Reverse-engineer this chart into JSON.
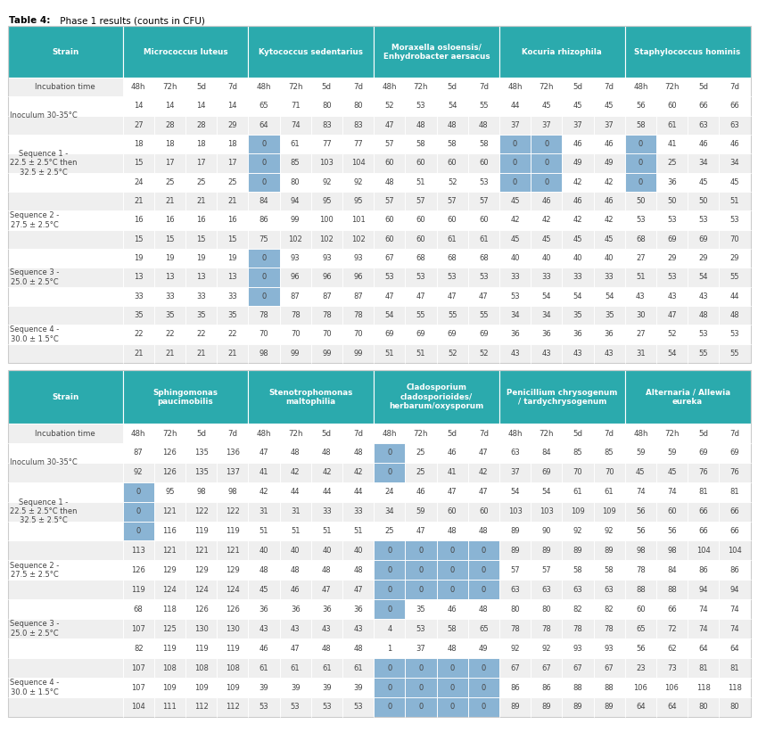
{
  "title_bold": "Table 4:",
  "title_normal": " Phase 1 results (counts in CFU)",
  "teal_color": "#2BAAAD",
  "light_blue_cell": "#8AB4D4",
  "white": "#FFFFFF",
  "light_gray": "#EFEFEF",
  "dark_text": "#444444",
  "white_text": "#FFFFFF",
  "border_color": "#CCCCCC",
  "table1": {
    "col_groups": [
      "Strain",
      "Micrococcus luteus",
      "Kytococcus sedentarius",
      "Moraxella osloensis/\nEnhydrobacter aersacus",
      "Kocuria rhizophila",
      "Staphylococcus hominis"
    ],
    "col_group_spans": [
      1,
      4,
      4,
      4,
      4,
      4
    ],
    "rows": [
      {
        "label": "Incubation time",
        "values": [
          "",
          "48h",
          "72h",
          "5d",
          "7d",
          "48h",
          "72h",
          "5d",
          "7d",
          "48h",
          "72h",
          "5d",
          "7d",
          "48h",
          "72h",
          "5d",
          "7d",
          "48h",
          "72h",
          "5d",
          "7d"
        ],
        "type": "subheader"
      },
      {
        "label": "Inoculum 30-35°C",
        "values": [
          "14",
          "14",
          "14",
          "14",
          "65",
          "71",
          "80",
          "80",
          "52",
          "53",
          "54",
          "55",
          "44",
          "45",
          "45",
          "45",
          "56",
          "60",
          "66",
          "66"
        ],
        "type": "data",
        "row_style": "white",
        "blue_cells": []
      },
      {
        "label": "",
        "values": [
          "27",
          "28",
          "28",
          "29",
          "64",
          "74",
          "83",
          "83",
          "47",
          "48",
          "48",
          "48",
          "37",
          "37",
          "37",
          "37",
          "58",
          "61",
          "63",
          "63"
        ],
        "type": "data",
        "row_style": "gray",
        "blue_cells": []
      },
      {
        "label": "Sequence 1 -\n22.5 ± 2.5°C then\n32.5 ± 2.5°C",
        "values": [
          "18",
          "18",
          "18",
          "18",
          "0",
          "61",
          "77",
          "77",
          "57",
          "58",
          "58",
          "58",
          "0",
          "0",
          "46",
          "46",
          "0",
          "41",
          "46",
          "46"
        ],
        "type": "data",
        "row_style": "white",
        "blue_cells": [
          4,
          12,
          13,
          16
        ]
      },
      {
        "label": "",
        "values": [
          "15",
          "17",
          "17",
          "17",
          "0",
          "85",
          "103",
          "104",
          "60",
          "60",
          "60",
          "60",
          "0",
          "0",
          "49",
          "49",
          "0",
          "25",
          "34",
          "34"
        ],
        "type": "data",
        "row_style": "gray",
        "blue_cells": [
          4,
          12,
          13,
          16
        ]
      },
      {
        "label": "",
        "values": [
          "24",
          "25",
          "25",
          "25",
          "0",
          "80",
          "92",
          "92",
          "48",
          "51",
          "52",
          "53",
          "0",
          "0",
          "42",
          "42",
          "0",
          "36",
          "45",
          "45"
        ],
        "type": "data",
        "row_style": "white",
        "blue_cells": [
          4,
          12,
          13,
          16
        ]
      },
      {
        "label": "Sequence 2 -\n27.5 ± 2.5°C",
        "values": [
          "21",
          "21",
          "21",
          "21",
          "84",
          "94",
          "95",
          "95",
          "57",
          "57",
          "57",
          "57",
          "45",
          "46",
          "46",
          "46",
          "50",
          "50",
          "50",
          "51"
        ],
        "type": "data",
        "row_style": "gray",
        "blue_cells": []
      },
      {
        "label": "",
        "values": [
          "16",
          "16",
          "16",
          "16",
          "86",
          "99",
          "100",
          "101",
          "60",
          "60",
          "60",
          "60",
          "42",
          "42",
          "42",
          "42",
          "53",
          "53",
          "53",
          "53"
        ],
        "type": "data",
        "row_style": "white",
        "blue_cells": []
      },
      {
        "label": "",
        "values": [
          "15",
          "15",
          "15",
          "15",
          "75",
          "102",
          "102",
          "102",
          "60",
          "60",
          "61",
          "61",
          "45",
          "45",
          "45",
          "45",
          "68",
          "69",
          "69",
          "70"
        ],
        "type": "data",
        "row_style": "gray",
        "blue_cells": []
      },
      {
        "label": "Sequence 3 -\n25.0 ± 2.5°C",
        "values": [
          "19",
          "19",
          "19",
          "19",
          "0",
          "93",
          "93",
          "93",
          "67",
          "68",
          "68",
          "68",
          "40",
          "40",
          "40",
          "40",
          "27",
          "29",
          "29",
          "29"
        ],
        "type": "data",
        "row_style": "white",
        "blue_cells": [
          4
        ]
      },
      {
        "label": "",
        "values": [
          "13",
          "13",
          "13",
          "13",
          "0",
          "96",
          "96",
          "96",
          "53",
          "53",
          "53",
          "53",
          "33",
          "33",
          "33",
          "33",
          "51",
          "53",
          "54",
          "55"
        ],
        "type": "data",
        "row_style": "gray",
        "blue_cells": [
          4
        ]
      },
      {
        "label": "",
        "values": [
          "33",
          "33",
          "33",
          "33",
          "0",
          "87",
          "87",
          "87",
          "47",
          "47",
          "47",
          "47",
          "53",
          "54",
          "54",
          "54",
          "43",
          "43",
          "43",
          "44"
        ],
        "type": "data",
        "row_style": "white",
        "blue_cells": [
          4
        ]
      },
      {
        "label": "Sequence 4 -\n30.0 ± 1.5°C",
        "values": [
          "35",
          "35",
          "35",
          "35",
          "78",
          "78",
          "78",
          "78",
          "54",
          "55",
          "55",
          "55",
          "34",
          "34",
          "35",
          "35",
          "30",
          "47",
          "48",
          "48"
        ],
        "type": "data",
        "row_style": "gray",
        "blue_cells": []
      },
      {
        "label": "",
        "values": [
          "22",
          "22",
          "22",
          "22",
          "70",
          "70",
          "70",
          "70",
          "69",
          "69",
          "69",
          "69",
          "36",
          "36",
          "36",
          "36",
          "27",
          "52",
          "53",
          "53"
        ],
        "type": "data",
        "row_style": "white",
        "blue_cells": []
      },
      {
        "label": "",
        "values": [
          "21",
          "21",
          "21",
          "21",
          "98",
          "99",
          "99",
          "99",
          "51",
          "51",
          "52",
          "52",
          "43",
          "43",
          "43",
          "43",
          "31",
          "54",
          "55",
          "55"
        ],
        "type": "data",
        "row_style": "gray",
        "blue_cells": []
      }
    ]
  },
  "table2": {
    "col_groups": [
      "Strain",
      "Sphingomonas\npaucimobilis",
      "Stenotrophomonas\nmaltophilia",
      "Cladosporium\ncladosporioides/\nherbarum/oxysporum",
      "Penicillium chrysogenum\n/ tardychrysogenum",
      "Alternaria / Allewia\neureka"
    ],
    "col_group_spans": [
      1,
      4,
      4,
      4,
      4,
      4
    ],
    "rows": [
      {
        "label": "Incubation time",
        "values": [
          "",
          "48h",
          "72h",
          "5d",
          "7d",
          "48h",
          "72h",
          "5d",
          "7d",
          "48h",
          "72h",
          "5d",
          "7d",
          "48h",
          "72h",
          "5d",
          "7d",
          "48h",
          "72h",
          "5d",
          "7d"
        ],
        "type": "subheader"
      },
      {
        "label": "Inoculum 30-35°C",
        "values": [
          "87",
          "126",
          "135",
          "136",
          "47",
          "48",
          "48",
          "48",
          "0",
          "25",
          "46",
          "47",
          "63",
          "84",
          "85",
          "85",
          "59",
          "59",
          "69",
          "69"
        ],
        "type": "data",
        "row_style": "white",
        "blue_cells": [
          8
        ]
      },
      {
        "label": "",
        "values": [
          "92",
          "126",
          "135",
          "137",
          "41",
          "42",
          "42",
          "42",
          "0",
          "25",
          "41",
          "42",
          "37",
          "69",
          "70",
          "70",
          "45",
          "45",
          "76",
          "76"
        ],
        "type": "data",
        "row_style": "gray",
        "blue_cells": [
          8
        ]
      },
      {
        "label": "Sequence 1 -\n22.5 ± 2.5°C then\n32.5 ± 2.5°C",
        "values": [
          "0",
          "95",
          "98",
          "98",
          "42",
          "44",
          "44",
          "44",
          "24",
          "46",
          "47",
          "47",
          "54",
          "54",
          "61",
          "61",
          "74",
          "74",
          "81",
          "81"
        ],
        "type": "data",
        "row_style": "white",
        "blue_cells": [
          0
        ]
      },
      {
        "label": "",
        "values": [
          "0",
          "121",
          "122",
          "122",
          "31",
          "31",
          "33",
          "33",
          "34",
          "59",
          "60",
          "60",
          "103",
          "103",
          "109",
          "109",
          "56",
          "60",
          "66",
          "66"
        ],
        "type": "data",
        "row_style": "gray",
        "blue_cells": [
          0
        ]
      },
      {
        "label": "",
        "values": [
          "0",
          "116",
          "119",
          "119",
          "51",
          "51",
          "51",
          "51",
          "25",
          "47",
          "48",
          "48",
          "89",
          "90",
          "92",
          "92",
          "56",
          "56",
          "66",
          "66"
        ],
        "type": "data",
        "row_style": "white",
        "blue_cells": [
          0
        ]
      },
      {
        "label": "Sequence 2 -\n27.5 ± 2.5°C",
        "values": [
          "113",
          "121",
          "121",
          "121",
          "40",
          "40",
          "40",
          "40",
          "0",
          "0",
          "0",
          "0",
          "89",
          "89",
          "89",
          "89",
          "98",
          "98",
          "104",
          "104"
        ],
        "type": "data",
        "row_style": "gray",
        "blue_cells": [
          8,
          9,
          10,
          11
        ]
      },
      {
        "label": "",
        "values": [
          "126",
          "129",
          "129",
          "129",
          "48",
          "48",
          "48",
          "48",
          "0",
          "0",
          "0",
          "0",
          "57",
          "57",
          "58",
          "58",
          "78",
          "84",
          "86",
          "86"
        ],
        "type": "data",
        "row_style": "white",
        "blue_cells": [
          8,
          9,
          10,
          11
        ]
      },
      {
        "label": "",
        "values": [
          "119",
          "124",
          "124",
          "124",
          "45",
          "46",
          "47",
          "47",
          "0",
          "0",
          "0",
          "0",
          "63",
          "63",
          "63",
          "63",
          "88",
          "88",
          "94",
          "94"
        ],
        "type": "data",
        "row_style": "gray",
        "blue_cells": [
          8,
          9,
          10,
          11
        ]
      },
      {
        "label": "Sequence 3 -\n25.0 ± 2.5°C",
        "values": [
          "68",
          "118",
          "126",
          "126",
          "36",
          "36",
          "36",
          "36",
          "0",
          "35",
          "46",
          "48",
          "80",
          "80",
          "82",
          "82",
          "60",
          "66",
          "74",
          "74"
        ],
        "type": "data",
        "row_style": "white",
        "blue_cells": [
          8
        ]
      },
      {
        "label": "",
        "values": [
          "107",
          "125",
          "130",
          "130",
          "43",
          "43",
          "43",
          "43",
          "4",
          "53",
          "58",
          "65",
          "78",
          "78",
          "78",
          "78",
          "65",
          "72",
          "74",
          "74"
        ],
        "type": "data",
        "row_style": "gray",
        "blue_cells": []
      },
      {
        "label": "",
        "values": [
          "82",
          "119",
          "119",
          "119",
          "46",
          "47",
          "48",
          "48",
          "1",
          "37",
          "48",
          "49",
          "92",
          "92",
          "93",
          "93",
          "56",
          "62",
          "64",
          "64"
        ],
        "type": "data",
        "row_style": "white",
        "blue_cells": []
      },
      {
        "label": "Sequence 4 -\n30.0 ± 1.5°C",
        "values": [
          "107",
          "108",
          "108",
          "108",
          "61",
          "61",
          "61",
          "61",
          "0",
          "0",
          "0",
          "0",
          "67",
          "67",
          "67",
          "67",
          "23",
          "73",
          "81",
          "81"
        ],
        "type": "data",
        "row_style": "gray",
        "blue_cells": [
          8,
          9,
          10,
          11
        ]
      },
      {
        "label": "",
        "values": [
          "107",
          "109",
          "109",
          "109",
          "39",
          "39",
          "39",
          "39",
          "0",
          "0",
          "0",
          "0",
          "86",
          "86",
          "88",
          "88",
          "106",
          "106",
          "118",
          "118"
        ],
        "type": "data",
        "row_style": "white",
        "blue_cells": [
          8,
          9,
          10,
          11
        ]
      },
      {
        "label": "",
        "values": [
          "104",
          "111",
          "112",
          "112",
          "53",
          "53",
          "53",
          "53",
          "0",
          "0",
          "0",
          "0",
          "89",
          "89",
          "89",
          "89",
          "64",
          "64",
          "80",
          "80"
        ],
        "type": "data",
        "row_style": "gray",
        "blue_cells": [
          8,
          9,
          10,
          11
        ]
      }
    ]
  }
}
